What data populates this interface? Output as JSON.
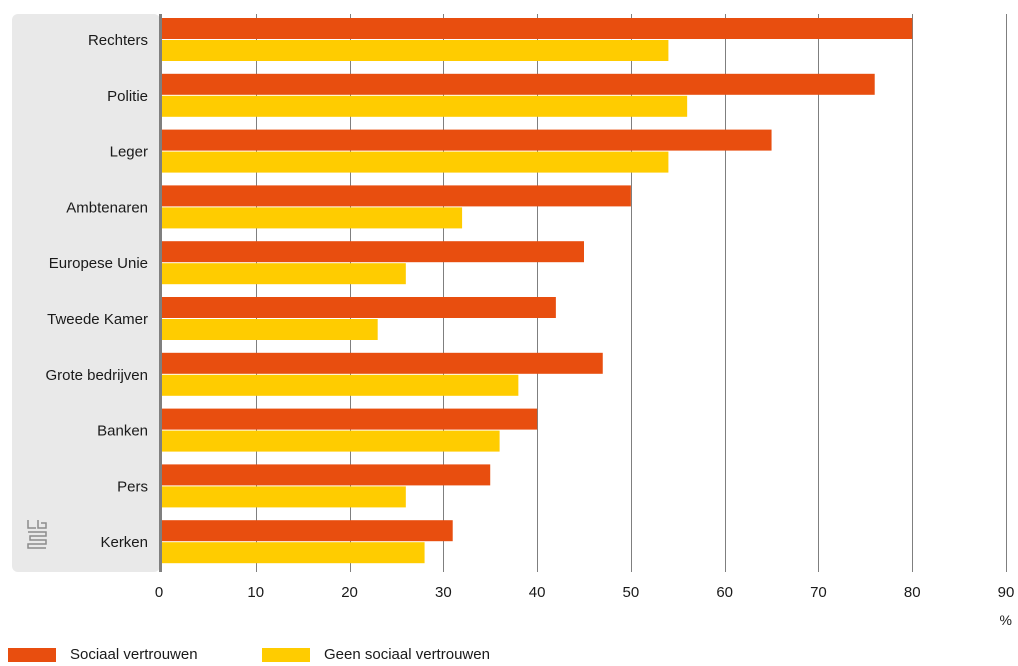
{
  "chart_data": {
    "type": "bar",
    "orientation": "horizontal",
    "categories": [
      "Rechters",
      "Politie",
      "Leger",
      "Ambtenaren",
      "Europese Unie",
      "Tweede Kamer",
      "Grote bedrijven",
      "Banken",
      "Pers",
      "Kerken"
    ],
    "series": [
      {
        "name": "Sociaal vertrouwen",
        "color": "#e84e0f",
        "values": [
          80,
          76,
          65,
          50,
          45,
          42,
          47,
          40,
          35,
          31
        ]
      },
      {
        "name": "Geen sociaal vertrouwen",
        "color": "#ffcc00",
        "values": [
          54,
          56,
          54,
          32,
          26,
          23,
          38,
          36,
          26,
          28
        ]
      }
    ],
    "xlim": [
      0,
      90
    ],
    "xticks": [
      0,
      10,
      20,
      30,
      40,
      50,
      60,
      70,
      80,
      90
    ],
    "xlabel": "%",
    "grid": true,
    "legend_position": "bottom-left",
    "label_panel_color": "#e9e9e9",
    "logo": "cbs-logo"
  }
}
